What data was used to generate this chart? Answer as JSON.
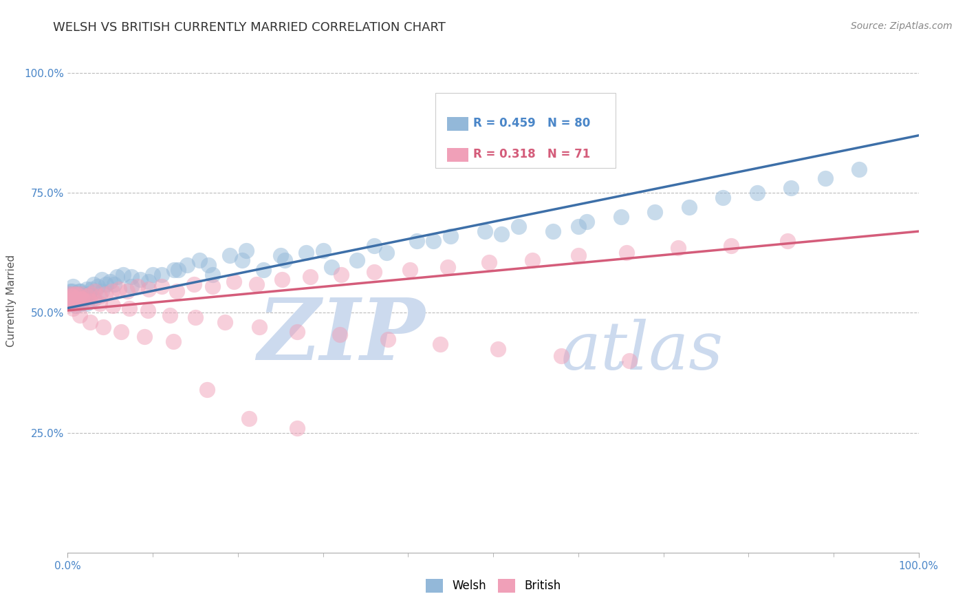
{
  "title": "WELSH VS BRITISH CURRENTLY MARRIED CORRELATION CHART",
  "source_text": "Source: ZipAtlas.com",
  "ylabel": "Currently Married",
  "legend_entry1_r": "R = 0.459",
  "legend_entry1_n": "N = 80",
  "legend_entry2_r": "R = 0.318",
  "legend_entry2_n": "N = 71",
  "welsh_color": "#93b8d9",
  "british_color": "#f0a0b8",
  "welsh_line_color": "#3d6fa8",
  "british_line_color": "#d45c7a",
  "watermark_zip": "ZIP",
  "watermark_atlas": "atlas",
  "watermark_color": "#ccdaee",
  "background_color": "#ffffff",
  "xlim": [
    0,
    1.0
  ],
  "ylim": [
    0.0,
    1.05
  ],
  "y_tick_values": [
    0.25,
    0.5,
    0.75,
    1.0
  ],
  "y_tick_labels": [
    "25.0%",
    "50.0%",
    "75.0%",
    "100.0%"
  ],
  "welsh_scatter_x": [
    0.001,
    0.002,
    0.003,
    0.004,
    0.005,
    0.006,
    0.007,
    0.008,
    0.009,
    0.01,
    0.011,
    0.012,
    0.013,
    0.014,
    0.015,
    0.016,
    0.017,
    0.018,
    0.019,
    0.02,
    0.022,
    0.025,
    0.028,
    0.031,
    0.035,
    0.04,
    0.045,
    0.05,
    0.058,
    0.065,
    0.075,
    0.085,
    0.095,
    0.11,
    0.125,
    0.14,
    0.155,
    0.17,
    0.19,
    0.21,
    0.23,
    0.255,
    0.28,
    0.31,
    0.34,
    0.375,
    0.41,
    0.45,
    0.49,
    0.53,
    0.57,
    0.61,
    0.65,
    0.69,
    0.73,
    0.77,
    0.81,
    0.85,
    0.89,
    0.93,
    0.001,
    0.003,
    0.006,
    0.01,
    0.015,
    0.022,
    0.03,
    0.04,
    0.055,
    0.075,
    0.1,
    0.13,
    0.165,
    0.205,
    0.25,
    0.3,
    0.36,
    0.43,
    0.51,
    0.6
  ],
  "welsh_scatter_y": [
    0.53,
    0.54,
    0.535,
    0.525,
    0.545,
    0.52,
    0.53,
    0.54,
    0.515,
    0.535,
    0.525,
    0.53,
    0.545,
    0.535,
    0.54,
    0.52,
    0.525,
    0.54,
    0.535,
    0.53,
    0.52,
    0.54,
    0.55,
    0.53,
    0.555,
    0.545,
    0.56,
    0.565,
    0.575,
    0.58,
    0.555,
    0.57,
    0.565,
    0.58,
    0.59,
    0.6,
    0.61,
    0.58,
    0.62,
    0.63,
    0.59,
    0.61,
    0.625,
    0.595,
    0.61,
    0.625,
    0.65,
    0.66,
    0.67,
    0.68,
    0.67,
    0.69,
    0.7,
    0.71,
    0.72,
    0.74,
    0.75,
    0.76,
    0.78,
    0.8,
    0.54,
    0.545,
    0.555,
    0.54,
    0.545,
    0.55,
    0.56,
    0.57,
    0.56,
    0.575,
    0.58,
    0.59,
    0.6,
    0.61,
    0.62,
    0.63,
    0.64,
    0.65,
    0.665,
    0.68
  ],
  "british_scatter_x": [
    0.001,
    0.002,
    0.003,
    0.005,
    0.007,
    0.009,
    0.011,
    0.013,
    0.015,
    0.017,
    0.02,
    0.023,
    0.027,
    0.032,
    0.038,
    0.044,
    0.052,
    0.06,
    0.07,
    0.082,
    0.095,
    0.11,
    0.128,
    0.148,
    0.17,
    0.195,
    0.222,
    0.252,
    0.285,
    0.321,
    0.36,
    0.402,
    0.447,
    0.495,
    0.546,
    0.6,
    0.657,
    0.717,
    0.78,
    0.846,
    0.002,
    0.005,
    0.01,
    0.017,
    0.026,
    0.038,
    0.053,
    0.072,
    0.094,
    0.12,
    0.15,
    0.185,
    0.225,
    0.27,
    0.32,
    0.376,
    0.438,
    0.506,
    0.58,
    0.66,
    0.002,
    0.006,
    0.014,
    0.026,
    0.042,
    0.063,
    0.09,
    0.124,
    0.164,
    0.213,
    0.27
  ],
  "british_scatter_y": [
    0.53,
    0.525,
    0.535,
    0.52,
    0.54,
    0.53,
    0.525,
    0.535,
    0.54,
    0.53,
    0.525,
    0.535,
    0.54,
    0.545,
    0.535,
    0.54,
    0.545,
    0.55,
    0.545,
    0.555,
    0.55,
    0.555,
    0.545,
    0.56,
    0.555,
    0.565,
    0.56,
    0.57,
    0.575,
    0.58,
    0.585,
    0.59,
    0.595,
    0.605,
    0.61,
    0.62,
    0.625,
    0.635,
    0.64,
    0.65,
    0.54,
    0.535,
    0.54,
    0.53,
    0.525,
    0.52,
    0.515,
    0.51,
    0.505,
    0.495,
    0.49,
    0.48,
    0.47,
    0.46,
    0.455,
    0.445,
    0.435,
    0.425,
    0.41,
    0.4,
    0.52,
    0.51,
    0.495,
    0.48,
    0.47,
    0.46,
    0.45,
    0.44,
    0.34,
    0.28,
    0.26
  ],
  "welsh_line_x0": 0.0,
  "welsh_line_y0": 0.51,
  "welsh_line_x1": 1.0,
  "welsh_line_y1": 0.87,
  "british_line_x0": 0.0,
  "british_line_y0": 0.505,
  "british_line_x1": 1.0,
  "british_line_y1": 0.67
}
